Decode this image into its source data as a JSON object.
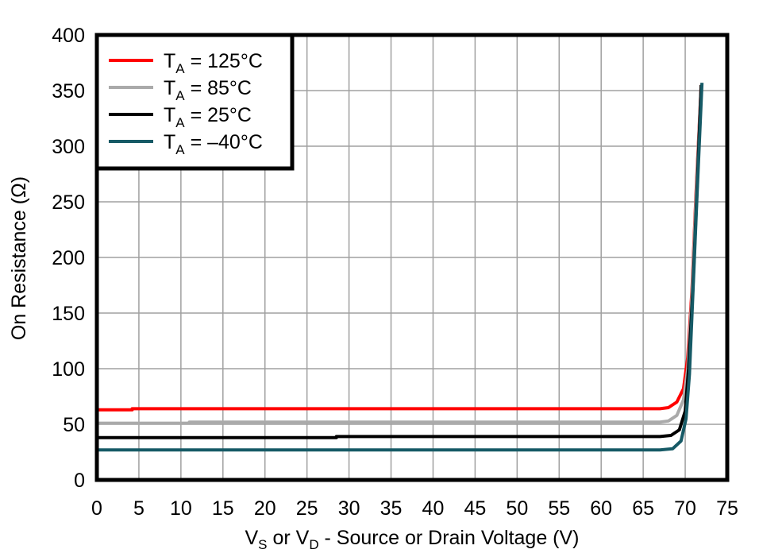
{
  "chart_data": {
    "type": "line",
    "title": "",
    "xlabel": "VS or VD - Source or Drain Voltage (V)",
    "xlabel_parts": {
      "v1": "V",
      "s1": "S",
      "mid": " or ",
      "v2": "V",
      "s2": "D",
      "rest": " - Source or Drain Voltage (V)"
    },
    "ylabel": "On Resistance (Ω)",
    "xlim": [
      0,
      75
    ],
    "ylim": [
      0,
      400
    ],
    "xticks": [
      0,
      5,
      10,
      15,
      20,
      25,
      30,
      35,
      40,
      45,
      50,
      55,
      60,
      65,
      70,
      75
    ],
    "yticks": [
      0,
      50,
      100,
      150,
      200,
      250,
      300,
      350,
      400
    ],
    "grid": true,
    "legend_position": "upper left",
    "series": [
      {
        "name": "TA = 125°C",
        "legend_main": "T",
        "legend_sub": "A",
        "legend_rest": " = 125°C",
        "color": "#ff0000",
        "x": [
          0,
          4.2,
          4.2,
          20,
          40,
          60,
          67,
          68,
          69,
          69.8,
          70.3,
          70.8,
          71.3,
          71.9
        ],
        "y": [
          63,
          63,
          64,
          64,
          64,
          64,
          64,
          65,
          70,
          82,
          110,
          170,
          260,
          355
        ]
      },
      {
        "name": "TA = 85°C",
        "legend_main": "T",
        "legend_sub": "A",
        "legend_rest": " = 85°C",
        "color": "#aaaaaa",
        "x": [
          0,
          11,
          11,
          30,
          50,
          67,
          68,
          69,
          69.8,
          70.3,
          70.8,
          71.3,
          71.9
        ],
        "y": [
          51,
          51,
          52,
          52,
          52,
          52,
          53,
          58,
          72,
          100,
          165,
          255,
          355
        ]
      },
      {
        "name": "TA = 25°C",
        "legend_main": "T",
        "legend_sub": "A",
        "legend_rest": " = 25°C",
        "color": "#000000",
        "x": [
          0,
          28.5,
          28.5,
          50,
          67,
          68.3,
          69.3,
          70,
          70.4,
          70.9,
          71.4,
          71.9
        ],
        "y": [
          38,
          38,
          39,
          39,
          39,
          40,
          45,
          62,
          100,
          170,
          260,
          355
        ]
      },
      {
        "name": "TA = −40°C",
        "legend_main": "T",
        "legend_sub": "A",
        "legend_rest": " = –40°C",
        "color": "#165a66",
        "x": [
          0,
          20,
          40,
          60,
          67,
          68.5,
          69.5,
          70.1,
          70.5,
          70.9,
          71.4,
          72.0
        ],
        "y": [
          27,
          27,
          27,
          27,
          27,
          28,
          35,
          55,
          95,
          165,
          255,
          357
        ]
      }
    ]
  }
}
